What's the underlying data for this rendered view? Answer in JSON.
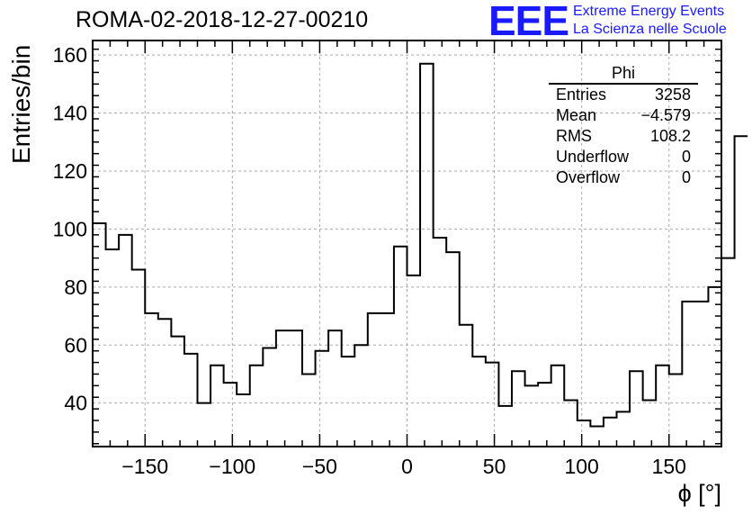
{
  "header": {
    "title": "ROMA-02-2018-12-27-00210",
    "logo": "EEE",
    "logo_line1": "Extreme Energy Events",
    "logo_line2": "La Scienza nelle Scuole"
  },
  "stats": {
    "name": "Phi",
    "rows": [
      {
        "label": "Entries",
        "value": "3258"
      },
      {
        "label": "Mean",
        "value": "−4.579"
      },
      {
        "label": "RMS",
        "value": "108.2"
      },
      {
        "label": "Underflow",
        "value": "0"
      },
      {
        "label": "Overflow",
        "value": "0"
      }
    ]
  },
  "chart_data": {
    "type": "histogram",
    "title": "ROMA-02-2018-12-27-00210",
    "xlabel": "ϕ [°]",
    "ylabel": "Entries/bin",
    "xlim": [
      -180,
      180
    ],
    "ylim": [
      25,
      165
    ],
    "bin_width": 7.5,
    "grid": true,
    "x_ticks": [
      -150,
      -100,
      -50,
      0,
      50,
      100,
      150
    ],
    "x_tick_labels": [
      "−150",
      "−100",
      "−50",
      "0",
      "50",
      "100",
      "150"
    ],
    "y_ticks": [
      40,
      60,
      80,
      100,
      120,
      140,
      160
    ],
    "y_tick_labels": [
      "40",
      "60",
      "80",
      "100",
      "120",
      "140",
      "160"
    ],
    "values": [
      102,
      93,
      98,
      86,
      71,
      69,
      63,
      57,
      40,
      53,
      47,
      43,
      53,
      59,
      65,
      65,
      50,
      58,
      65,
      56,
      60,
      71,
      71,
      94,
      84,
      157,
      97,
      92,
      67,
      56,
      54,
      39,
      51,
      46,
      47,
      53,
      41,
      34,
      32,
      35,
      37,
      51,
      41,
      53,
      50,
      75,
      75,
      80,
      90,
      132
    ]
  }
}
